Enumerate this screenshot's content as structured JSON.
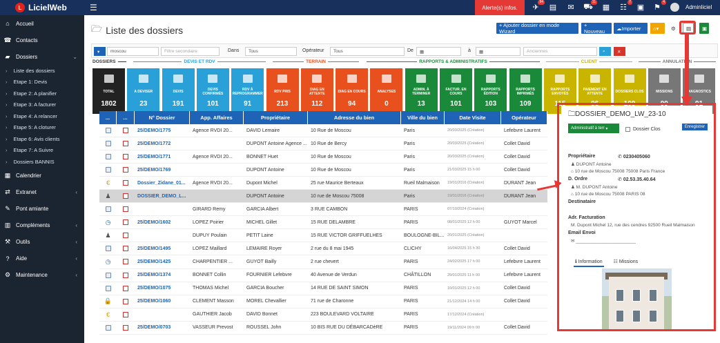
{
  "app": {
    "name": "LicielWeb",
    "logo_letter": "L"
  },
  "topbar": {
    "alert_label": "Alerte(s) infos.",
    "user_name": "Adminliciel",
    "badges": [
      "94",
      "",
      "",
      "11",
      "",
      "7",
      "",
      "13",
      "4"
    ]
  },
  "sidebar": {
    "items": [
      {
        "label": "Accueil",
        "icon": "home-icon"
      },
      {
        "label": "Contacts",
        "icon": "contacts-icon"
      },
      {
        "label": "Dossiers",
        "icon": "folder-icon"
      }
    ],
    "sub_items": [
      "Liste des dossiers",
      "Etape 1: Devis",
      "Etape 2: A planifier",
      "Etape 3: A facturer",
      "Etape 4: A relancer",
      "Etape 5: A cloturer",
      "Etape 6: Avis clients",
      "Etape 7: A Suivre",
      "Dossiers BANNIS"
    ],
    "items_after": [
      {
        "label": "Calendrier",
        "icon": "calendar-icon",
        "arrow": ""
      },
      {
        "label": "Extranet",
        "icon": "extranet-icon",
        "arrow": "‹"
      },
      {
        "label": "Pont amiante",
        "icon": "pen-icon",
        "arrow": ""
      },
      {
        "label": "Compléments",
        "icon": "chart-icon",
        "arrow": "‹"
      },
      {
        "label": "Outils",
        "icon": "wrench-icon",
        "arrow": "‹"
      },
      {
        "label": "Aide",
        "icon": "help-icon",
        "arrow": "‹"
      },
      {
        "label": "Maintenance",
        "icon": "gear-icon",
        "arrow": "‹"
      }
    ]
  },
  "header": {
    "title": "Liste des dossiers",
    "buttons": {
      "wizard": "+ Ajouter dossier en mode Wizard",
      "new": "+ Nouveau",
      "import": "Importer"
    }
  },
  "filters": {
    "search_value": "moscou",
    "secondary_placeholder": "Filtre secondaire",
    "dans_label": "Dans",
    "dans_value": "Tous",
    "operateur_label": "Opérateur",
    "operateur_value": "Tous",
    "de_label": "De",
    "a_label": "à",
    "anciennes_value": "Anciennes"
  },
  "categories": [
    {
      "label": "DOSSIERS",
      "color": "#333333"
    },
    {
      "label": "DEVIS ET RDV",
      "color": "#2aa0d8"
    },
    {
      "label": "TERRAIN",
      "color": "#e8501e"
    },
    {
      "label": "RAPPORTS & ADMINISTRATIFS",
      "color": "#1a8a3a"
    },
    {
      "label": "CLIENT",
      "color": "#c9b400"
    },
    {
      "label": "ANNULATION",
      "color": "#777777"
    }
  ],
  "tiles": [
    {
      "label": "TOTAL",
      "value": "1802",
      "color": "#222222"
    },
    {
      "label": "A DEVISER",
      "value": "23",
      "color": "#2aa0d8"
    },
    {
      "label": "DEVIS",
      "value": "191",
      "color": "#2aa0d8"
    },
    {
      "label": "DEVIS CONFIRMÉS",
      "value": "101",
      "color": "#2aa0d8"
    },
    {
      "label": "RDV À REPROGRAMMER",
      "value": "91",
      "color": "#2aa0d8"
    },
    {
      "label": "RDV PRIS",
      "value": "213",
      "color": "#e8501e"
    },
    {
      "label": "DIAG EN ATTENTE",
      "value": "112",
      "color": "#e8501e"
    },
    {
      "label": "DIAG EN COURS",
      "value": "94",
      "color": "#e8501e"
    },
    {
      "label": "ANALYSES",
      "value": "0",
      "color": "#e8501e"
    },
    {
      "label": "ADMIN. À TERMINER",
      "value": "13",
      "color": "#1a8a3a"
    },
    {
      "label": "FACTUR. EN COURS",
      "value": "101",
      "color": "#1a8a3a"
    },
    {
      "label": "RAPPORTS ÉDITION",
      "value": "103",
      "color": "#1a8a3a"
    },
    {
      "label": "RAPPORTS IMPRIMÉS",
      "value": "109",
      "color": "#1a8a3a"
    },
    {
      "label": "RAPPORTS ENVOYÉS",
      "value": "115",
      "color": "#c9b400"
    },
    {
      "label": "PAIEMENT EN ATTENTE",
      "value": "96",
      "color": "#c9b400"
    },
    {
      "label": "DOSSIERS CLOS",
      "value": "109",
      "color": "#c9b400"
    },
    {
      "label": "MISSIONS",
      "value": "99",
      "color": "#777777"
    },
    {
      "label": "DIAGNOSTICS",
      "value": "91",
      "color": "#777777"
    }
  ],
  "table": {
    "headers": [
      "...",
      "...",
      "N° Dossier",
      "App. Affaires",
      "Propriétaire",
      "Adresse du bien",
      "Ville du bien",
      "Date Visite",
      "Opérateur"
    ],
    "rows": [
      {
        "icon": "doc",
        "num": "25/DEMO/1775",
        "app": "Agence RVDI 20...",
        "owner": "DAVID Lemaire",
        "addr": "10 Rue de Moscou",
        "city": "Paris",
        "date": "20/03/2025 (Création)",
        "op": "Lefebvre Laurent"
      },
      {
        "icon": "doc",
        "num": "25/DEMO/1772",
        "app": "",
        "owner": "DUPONT Antoine Agence ...",
        "addr": "10 Rue de Bercy",
        "city": "Paris",
        "date": "20/03/2025 (Création)",
        "op": "Collet David"
      },
      {
        "icon": "doc",
        "num": "25/DEMO/1771",
        "app": "Agence RVDI 20...",
        "owner": "BONNET Huet",
        "addr": "10 Rue de Moscou",
        "city": "Paris",
        "date": "20/03/2025 (Création)",
        "op": "Collet David"
      },
      {
        "icon": "doc",
        "num": "25/DEMO/1769",
        "app": "",
        "owner": "DUPONT Antoine",
        "addr": "10 Rue de Moscou",
        "city": "Paris",
        "date": "21/03/2025 15 h 00",
        "op": "Collet David"
      },
      {
        "icon": "euro",
        "num": "Dossier_Zidane_01...",
        "app": "Agence RVDI 20...",
        "owner": "Dupont Michel",
        "addr": "25 rue Maurice Berteaux",
        "city": "Rueil Malmaison",
        "date": "19/01/2016 (Création)",
        "op": "DURANT Jean"
      },
      {
        "icon": "person",
        "num": "DOSSIER_DEMO_L...",
        "app": "",
        "owner": "DUPONT Antoine",
        "addr": "10 rue de Moscou 75008",
        "city": "Paris",
        "date": "19/01/2016 (Création)",
        "op": "DURANT Jean"
      },
      {
        "icon": "doc",
        "num": "",
        "app": "GIRARD Remy",
        "owner": "GARCIA Albert",
        "addr": "3 RUE CAMBON",
        "city": "PARIS",
        "date": "07/10/2024 (Création)",
        "op": ""
      },
      {
        "icon": "clock",
        "num": "25/DEMO/1602",
        "app": "LOPEZ Poirier",
        "owner": "MICHEL Gillet",
        "addr": "15 RUE DELAMBRE",
        "city": "PARIS",
        "date": "08/01/2025 12 h 00",
        "op": "GUYOT Marcel"
      },
      {
        "icon": "person",
        "num": "",
        "app": "DUPUY Poulain",
        "owner": "PETIT Laine",
        "addr": "15 RUE VICTOR GRIFFUELHES",
        "city": "BOULOGNE-BIL...",
        "date": "20/01/2025 (Création)",
        "op": ""
      },
      {
        "icon": "doc",
        "num": "25/DEMO/1495",
        "app": "LOPEZ Maillard",
        "owner": "LEMAIRE Royer",
        "addr": "2 rue du 8 mai 1945",
        "city": "CLICHY",
        "date": "16/04/2025 15 h 30",
        "op": "Collet David"
      },
      {
        "icon": "clock",
        "num": "25/DEMO/1425",
        "app": "CHARPENTIER ...",
        "owner": "GUYOT Bailly",
        "addr": "2 rue chevert",
        "city": "PARIS",
        "date": "24/02/2025 17 h 00",
        "op": "Lefebvre Laurent"
      },
      {
        "icon": "doc",
        "num": "25/DEMO/1374",
        "app": "BONNET Collin",
        "owner": "FOURNIER Lefebvre",
        "addr": "40 Avenue de Verdun",
        "city": "CHÂTILLON",
        "date": "29/01/2025 11 h 00",
        "op": "Lefebvre Laurent"
      },
      {
        "icon": "doc",
        "num": "25/DEMO/1075",
        "app": "THOMAS Michel",
        "owner": "GARCIA Boucher",
        "addr": "14 RUE DE SAINT SIMON",
        "city": "PARIS",
        "date": "10/01/2025 12 h 00",
        "op": "Collet David"
      },
      {
        "icon": "lock",
        "num": "25/DEMO/1060",
        "app": "CLEMENT Masson",
        "owner": "MOREL Chevallier",
        "addr": "71 rue de Charonne",
        "city": "PARIS",
        "date": "21/12/2024 14 h 00",
        "op": "Collet David"
      },
      {
        "icon": "euro",
        "num": "",
        "app": "GAUTHIER Jacob",
        "owner": "DAVID Bonnet",
        "addr": "223 BOULEVARD VOLTAIRE",
        "city": "PARIS",
        "date": "17/12/2024 (Création)",
        "op": ""
      },
      {
        "icon": "doc",
        "num": "25/DEMO/0703",
        "app": "VASSEUR Prevost",
        "owner": "ROUSSEL John",
        "addr": "10 BIS RUE DU DÉBARCADèRE",
        "city": "PARIS",
        "date": "19/11/2024 09 h 00",
        "op": "Collet David"
      }
    ]
  },
  "detail": {
    "title": "DOSSIER_DEMO_LW_23-10",
    "status": "Administratif à terr",
    "clos_label": "Dossier Clos",
    "save_label": "Enregistrer",
    "owner_label": "Propriétaire",
    "owner_phone": "0230405060",
    "owner_name": "DUPONT Antoine",
    "owner_address": "10 rue de Moscou 75008 75008 Paris France",
    "order_label": "D. Ordre",
    "order_phone": "02.53.35.40.64",
    "order_name": "M. DUPONT Antoine",
    "order_address": "10 rue de Moscou 75008 PARIS 08",
    "dest_label": "Destinataire",
    "billing_label": "Adr. Facturation",
    "billing_value": "M. Dupont Michel 12, rue des cendres 92500 Rueil Malmaison",
    "email_label": "Email Envoi",
    "tab_info": "Information",
    "tab_missions": "Missions"
  }
}
